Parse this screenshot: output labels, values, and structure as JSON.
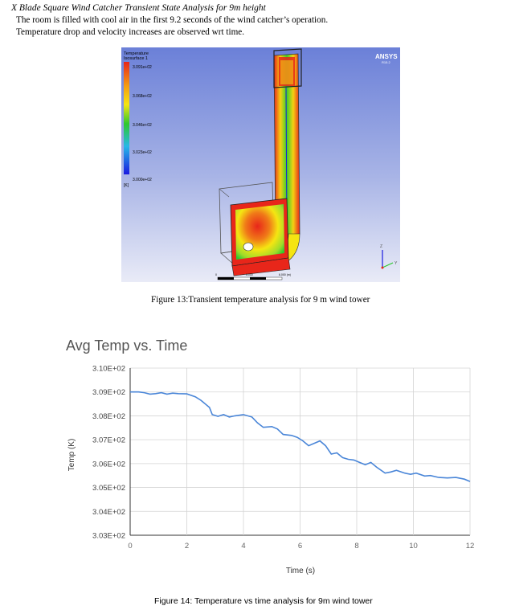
{
  "section_title": "X Blade Square Wind Catcher Transient State Analysis for 9m height",
  "intro": [
    "The room is filled with cool air in the first 9.2 seconds of the wind catcher’s operation.",
    "Temperature drop and velocity increases are observed wrt time."
  ],
  "figure13": {
    "legend_title": "Temperature",
    "legend_subtitle": "Isosurface 1",
    "legend_values": [
      "3.091e+02",
      "3.068e+02",
      "3.046e+02",
      "3.023e+02",
      "3.000e+02"
    ],
    "legend_unit": "[K]",
    "logo": "ANSYS",
    "logo_version": "R15.2",
    "scale_mid": "3.000",
    "scale_end": "6.000 (m)",
    "scale_zero": "0",
    "axis_y": "Y",
    "axis_z": "Z",
    "caption": "Figure 13:Transient temperature analysis for 9 m wind tower",
    "colors": {
      "hot": "#e8261a",
      "warm": "#f5e512",
      "mid": "#2ec82e",
      "cool": "#25b8e8",
      "cold": "#1a1ae0",
      "bg_top": "#6b80d8",
      "bg_bottom": "#e6e8f6"
    }
  },
  "chart_data": {
    "type": "line",
    "title": "Avg Temp vs. Time",
    "xlabel": "Time (s)",
    "ylabel": "Temp (K)",
    "xlim": [
      0,
      12
    ],
    "ylim": [
      303,
      310
    ],
    "xticks": [
      "0",
      "2",
      "4",
      "6",
      "8",
      "10",
      "12"
    ],
    "yticks": [
      "3.03E+02",
      "3.04E+02",
      "3.05E+02",
      "3.06E+02",
      "3.07E+02",
      "3.08E+02",
      "3.09E+02",
      "3.10E+02"
    ],
    "grid": true,
    "series": [
      {
        "color": "#4a86d8",
        "x": [
          0,
          0.3,
          0.5,
          0.7,
          0.9,
          1.1,
          1.3,
          1.5,
          1.7,
          2.0,
          2.3,
          2.5,
          2.8,
          2.9,
          3.1,
          3.3,
          3.5,
          3.7,
          4.0,
          4.3,
          4.5,
          4.7,
          5.0,
          5.2,
          5.4,
          5.7,
          5.9,
          6.1,
          6.3,
          6.5,
          6.7,
          6.9,
          7.1,
          7.3,
          7.5,
          7.7,
          7.9,
          8.1,
          8.3,
          8.5,
          8.7,
          9.0,
          9.2,
          9.4,
          9.7,
          9.9,
          10.1,
          10.4,
          10.6,
          10.9,
          11.2,
          11.5,
          11.8,
          12.0
        ],
        "y": [
          309.0,
          309.0,
          308.97,
          308.91,
          308.93,
          308.97,
          308.91,
          308.95,
          308.93,
          308.92,
          308.8,
          308.65,
          308.35,
          308.05,
          307.98,
          308.05,
          307.95,
          308.0,
          308.05,
          307.95,
          307.7,
          307.52,
          307.55,
          307.45,
          307.22,
          307.18,
          307.1,
          306.95,
          306.75,
          306.85,
          306.95,
          306.75,
          306.4,
          306.45,
          306.25,
          306.18,
          306.15,
          306.05,
          305.95,
          306.05,
          305.85,
          305.6,
          305.65,
          305.72,
          305.6,
          305.55,
          305.6,
          305.48,
          305.5,
          305.42,
          305.4,
          305.42,
          305.35,
          305.25
        ]
      }
    ]
  },
  "figure14_caption": "Figure 14: Temperature vs time analysis for 9m wind tower"
}
